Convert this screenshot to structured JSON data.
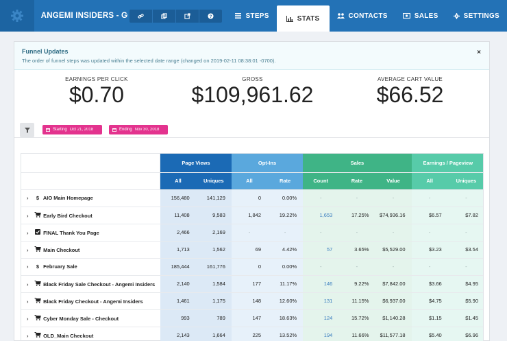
{
  "header": {
    "funnel_title": "ANGEMI INSIDERS - GO...",
    "icons": [
      "link-icon",
      "copy-icon",
      "external-link-icon",
      "help-icon"
    ],
    "tabs": [
      {
        "label": "STEPS",
        "icon": "list-icon",
        "active": false
      },
      {
        "label": "STATS",
        "icon": "bar-chart-icon",
        "active": true
      },
      {
        "label": "CONTACTS",
        "icon": "users-icon",
        "active": false
      },
      {
        "label": "SALES",
        "icon": "money-icon",
        "active": false
      },
      {
        "label": "SETTINGS",
        "icon": "gear-icon",
        "active": false
      }
    ]
  },
  "alert": {
    "title": "Funnel Updates",
    "message": "The order of funnel steps was updated within the selected date range (changed on 2019-02-11 08:38:01 -0700).",
    "close": "×"
  },
  "metrics": {
    "epc_label": "EARNINGS PER CLICK",
    "epc_value": "$0.70",
    "gross_label": "GROSS",
    "gross_value": "$109,961.62",
    "acv_label": "AVERAGE CART VALUE",
    "acv_value": "$66.52"
  },
  "filters": {
    "start_label": "Starting",
    "start_date": "Oct 21, 2018",
    "end_label": "Ending",
    "end_date": "Nov 30, 2018"
  },
  "table": {
    "groups": {
      "page_views": "Page Views",
      "opt_ins": "Opt-Ins",
      "sales": "Sales",
      "earnings": "Earnings / Pageview"
    },
    "sub": {
      "all": "All",
      "uniques": "Uniques",
      "rate": "Rate",
      "count": "Count",
      "value": "Value"
    },
    "rows": [
      {
        "name": "AIO Main Homepage",
        "type": "dollar",
        "pv_all": "156,480",
        "pv_uni": "141,129",
        "oi_all": "0",
        "oi_rate": "0.00%",
        "s_count": "-",
        "s_rate": "-",
        "s_value": "-",
        "e_all": "-",
        "e_uni": "-"
      },
      {
        "name": "Early Bird Checkout",
        "type": "cart",
        "pv_all": "11,408",
        "pv_uni": "9,583",
        "oi_all": "1,842",
        "oi_rate": "19.22%",
        "s_count": "1,653",
        "s_rate": "17.25%",
        "s_value": "$74,936.16",
        "e_all": "$6.57",
        "e_uni": "$7.82"
      },
      {
        "name": "FINAL Thank You Page",
        "type": "check",
        "pv_all": "2,466",
        "pv_uni": "2,169",
        "oi_all": "-",
        "oi_rate": "-",
        "s_count": "-",
        "s_rate": "-",
        "s_value": "-",
        "e_all": "-",
        "e_uni": "-"
      },
      {
        "name": "Main Checkout",
        "type": "cart",
        "pv_all": "1,713",
        "pv_uni": "1,562",
        "oi_all": "69",
        "oi_rate": "4.42%",
        "s_count": "57",
        "s_rate": "3.65%",
        "s_value": "$5,529.00",
        "e_all": "$3.23",
        "e_uni": "$3.54"
      },
      {
        "name": "February Sale",
        "type": "dollar",
        "pv_all": "185,444",
        "pv_uni": "161,776",
        "oi_all": "0",
        "oi_rate": "0.00%",
        "s_count": "-",
        "s_rate": "-",
        "s_value": "-",
        "e_all": "-",
        "e_uni": "-"
      },
      {
        "name": "Black Friday Sale Checkout - Angemi Insiders",
        "type": "cart",
        "pv_all": "2,140",
        "pv_uni": "1,584",
        "oi_all": "177",
        "oi_rate": "11.17%",
        "s_count": "146",
        "s_rate": "9.22%",
        "s_value": "$7,842.00",
        "e_all": "$3.66",
        "e_uni": "$4.95"
      },
      {
        "name": "Black Friday Checkout - Angemi Insiders",
        "type": "cart",
        "pv_all": "1,461",
        "pv_uni": "1,175",
        "oi_all": "148",
        "oi_rate": "12.60%",
        "s_count": "131",
        "s_rate": "11.15%",
        "s_value": "$6,937.00",
        "e_all": "$4.75",
        "e_uni": "$5.90"
      },
      {
        "name": "Cyber Monday Sale - Checkout",
        "type": "cart",
        "pv_all": "993",
        "pv_uni": "789",
        "oi_all": "147",
        "oi_rate": "18.63%",
        "s_count": "124",
        "s_rate": "15.72%",
        "s_value": "$1,140.28",
        "e_all": "$1.15",
        "e_uni": "$1.45"
      },
      {
        "name": "OLD_Main Checkout",
        "type": "cart",
        "pv_all": "2,143",
        "pv_uni": "1,664",
        "oi_all": "225",
        "oi_rate": "13.52%",
        "s_count": "194",
        "s_rate": "11.66%",
        "s_value": "$11,577.18",
        "e_all": "$5.40",
        "e_uni": "$6.96"
      }
    ]
  }
}
